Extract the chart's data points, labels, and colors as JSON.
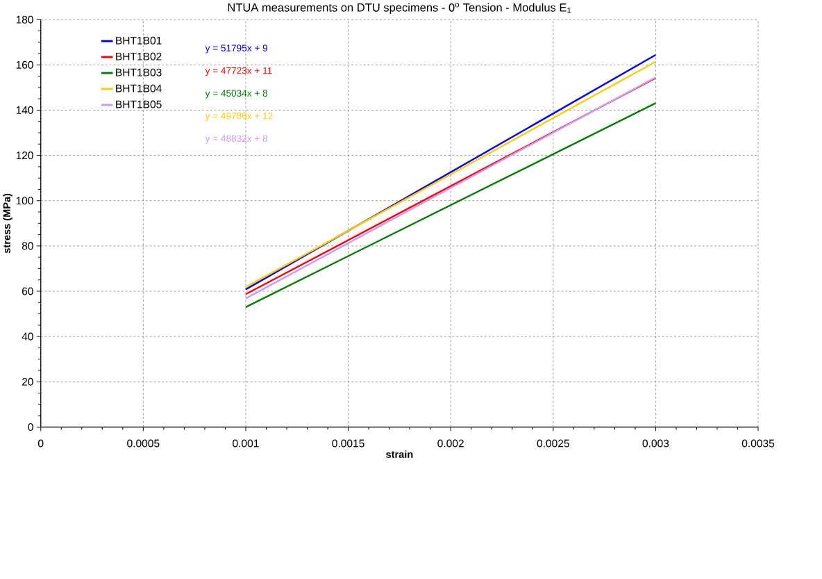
{
  "chart_data": {
    "type": "line",
    "title": "NTUA measurements on DTU specimens - 0$^{o}$ Tension - Modulus E$_{1}$",
    "xlabel": "strain",
    "ylabel": "stress (MPa)",
    "x": [
      0.001,
      0.003
    ],
    "series": [
      {
        "name": "BHT1B01",
        "color": "#0000ff",
        "values": [
          60.8,
          164.4
        ]
      },
      {
        "name": "BHT1B02",
        "color": "#ff0000",
        "values": [
          58.7,
          154.2
        ]
      },
      {
        "name": "BHT1B03",
        "color": "#008000",
        "values": [
          53.0,
          143.1
        ]
      },
      {
        "name": "BHT1B04",
        "color": "#ffcc00",
        "values": [
          61.8,
          161.4
        ]
      },
      {
        "name": "BHT1B05",
        "color": "#cc99ff",
        "values": [
          56.8,
          154.5
        ]
      }
    ],
    "annotations": [
      "y = 51795x + 9",
      "y = 47723x + 11",
      "y = 45034x + 8",
      "y = 49786x + 12",
      "y = 48832x + 8"
    ],
    "xlim": [
      0,
      0.0035
    ],
    "xticks": [
      0,
      0.0005,
      0.001,
      0.0015,
      0.002,
      0.0025,
      0.003,
      0.0035
    ],
    "ylim": [
      0,
      180
    ],
    "yticks": [
      0,
      20,
      40,
      60,
      80,
      100,
      120,
      140,
      160,
      180
    ],
    "grid": true,
    "legend": "top left",
    "marker": "none",
    "line_style": "solid"
  }
}
